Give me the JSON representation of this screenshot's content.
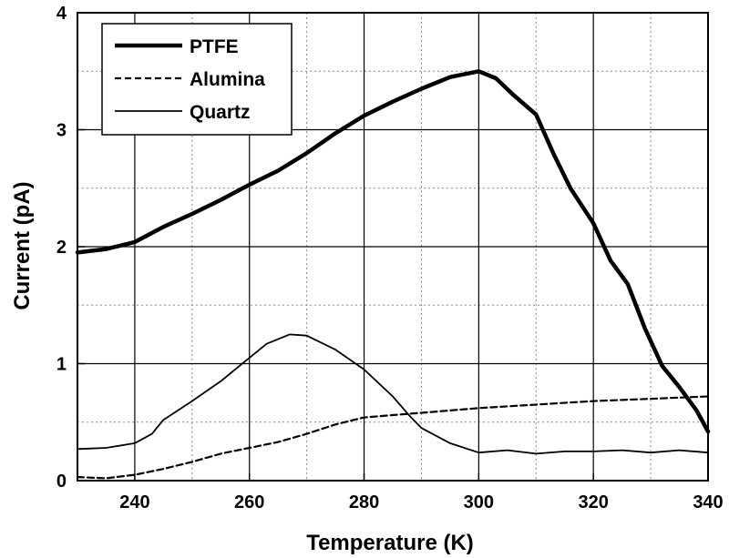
{
  "chart_data": {
    "type": "line",
    "xlabel": "Temperature (K)",
    "ylabel": "Current (pA)",
    "xlim": [
      230,
      340
    ],
    "ylim": [
      0,
      4
    ],
    "x_ticks": [
      240,
      260,
      280,
      300,
      320,
      340
    ],
    "y_ticks": [
      0,
      1,
      2,
      3,
      4
    ],
    "x_tick_labels": [
      "240",
      "260",
      "280",
      "300",
      "320",
      "340"
    ],
    "y_tick_labels": [
      "0",
      "1",
      "2",
      "3",
      "4"
    ],
    "grid": true,
    "legend_position": "top-left",
    "series": [
      {
        "name": "PTFE",
        "style": "solid-thick",
        "color": "#000000",
        "points": [
          [
            230,
            1.95
          ],
          [
            235,
            1.98
          ],
          [
            240,
            2.04
          ],
          [
            245,
            2.17
          ],
          [
            250,
            2.28
          ],
          [
            255,
            2.4
          ],
          [
            260,
            2.53
          ],
          [
            265,
            2.65
          ],
          [
            270,
            2.8
          ],
          [
            275,
            2.97
          ],
          [
            280,
            3.12
          ],
          [
            285,
            3.24
          ],
          [
            290,
            3.35
          ],
          [
            295,
            3.45
          ],
          [
            300,
            3.5
          ],
          [
            303,
            3.44
          ],
          [
            306,
            3.3
          ],
          [
            310,
            3.13
          ],
          [
            313,
            2.8
          ],
          [
            316,
            2.5
          ],
          [
            320,
            2.2
          ],
          [
            323,
            1.88
          ],
          [
            326,
            1.68
          ],
          [
            329,
            1.3
          ],
          [
            332,
            0.98
          ],
          [
            335,
            0.8
          ],
          [
            338,
            0.6
          ],
          [
            340,
            0.42
          ]
        ]
      },
      {
        "name": "Alumina",
        "style": "dashed",
        "color": "#000000",
        "points": [
          [
            230,
            0.03
          ],
          [
            235,
            0.02
          ],
          [
            240,
            0.05
          ],
          [
            245,
            0.1
          ],
          [
            250,
            0.16
          ],
          [
            255,
            0.23
          ],
          [
            260,
            0.28
          ],
          [
            265,
            0.33
          ],
          [
            270,
            0.4
          ],
          [
            275,
            0.48
          ],
          [
            280,
            0.54
          ],
          [
            285,
            0.56
          ],
          [
            290,
            0.58
          ],
          [
            295,
            0.6
          ],
          [
            300,
            0.62
          ],
          [
            310,
            0.65
          ],
          [
            320,
            0.68
          ],
          [
            330,
            0.7
          ],
          [
            340,
            0.72
          ]
        ]
      },
      {
        "name": "Quartz",
        "style": "solid-thin",
        "color": "#000000",
        "points": [
          [
            230,
            0.27
          ],
          [
            235,
            0.28
          ],
          [
            240,
            0.32
          ],
          [
            243,
            0.4
          ],
          [
            245,
            0.52
          ],
          [
            250,
            0.68
          ],
          [
            255,
            0.85
          ],
          [
            260,
            1.05
          ],
          [
            263,
            1.17
          ],
          [
            267,
            1.25
          ],
          [
            270,
            1.24
          ],
          [
            275,
            1.12
          ],
          [
            280,
            0.95
          ],
          [
            285,
            0.72
          ],
          [
            288,
            0.55
          ],
          [
            290,
            0.45
          ],
          [
            295,
            0.32
          ],
          [
            300,
            0.24
          ],
          [
            305,
            0.26
          ],
          [
            310,
            0.23
          ],
          [
            315,
            0.25
          ],
          [
            320,
            0.25
          ],
          [
            325,
            0.26
          ],
          [
            330,
            0.24
          ],
          [
            335,
            0.26
          ],
          [
            340,
            0.24
          ]
        ]
      }
    ]
  }
}
